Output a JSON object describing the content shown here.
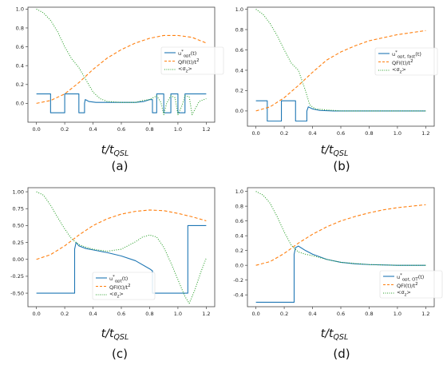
{
  "colors": {
    "u": "#1f77b4",
    "qfi": "#ff7f0e",
    "sigma": "#2ca02c",
    "axes": "#444444"
  },
  "xlabel": {
    "main": "t/t",
    "sub": "QSL"
  },
  "chart_data": [
    {
      "type": "line",
      "caption": "(a)",
      "xlim": [
        -0.06,
        1.26
      ],
      "ylim": [
        -0.2,
        1.02
      ],
      "xticks": [
        "0.0",
        "0.2",
        "0.4",
        "0.6",
        "0.8",
        "1.0",
        "1.2"
      ],
      "yticks": [
        "0.0",
        "0.2",
        "0.4",
        "0.6",
        "0.8",
        "1.0"
      ],
      "legend_loc": "center-right",
      "series": [
        {
          "name": "u*opt(t)",
          "label_html": "u<sup>*</sup><sub>opt</sub>(t)",
          "style": "solid",
          "x": [
            0,
            0.1,
            0.1,
            0.2,
            0.2,
            0.3,
            0.3,
            0.34,
            0.34,
            0.345,
            0.37,
            0.42,
            0.5,
            0.6,
            0.7,
            0.76,
            0.8,
            0.82,
            0.82,
            0.85,
            0.85,
            0.9,
            0.9,
            0.95,
            0.95,
            1.0,
            1.0,
            1.05,
            1.05,
            1.1,
            1.1,
            1.2
          ],
          "y": [
            0.1,
            0.1,
            -0.1,
            -0.1,
            0.1,
            0.1,
            -0.1,
            -0.1,
            0.0,
            0.04,
            0.02,
            0.01,
            0.01,
            0.01,
            0.01,
            0.02,
            0.04,
            0.04,
            -0.1,
            -0.1,
            0.1,
            0.1,
            -0.1,
            -0.1,
            0.1,
            0.1,
            -0.1,
            -0.1,
            0.1,
            0.1,
            0.1,
            0.1
          ]
        },
        {
          "name": "QFI(t)/t²",
          "label_html": "QFI(t)/t<sup>2</sup>",
          "style": "dashed",
          "x": [
            0,
            0.1,
            0.2,
            0.3,
            0.4,
            0.5,
            0.6,
            0.7,
            0.8,
            0.9,
            1.0,
            1.1,
            1.2
          ],
          "y": [
            0.0,
            0.03,
            0.1,
            0.22,
            0.36,
            0.48,
            0.57,
            0.64,
            0.69,
            0.72,
            0.72,
            0.7,
            0.64
          ]
        },
        {
          "name": "<σz>",
          "label_html": "&lt;σ<sub>z</sub>&gt;",
          "style": "dotted",
          "x": [
            0,
            0.05,
            0.1,
            0.15,
            0.2,
            0.25,
            0.3,
            0.35,
            0.4,
            0.45,
            0.5,
            0.6,
            0.7,
            0.75,
            0.8,
            0.85,
            0.88,
            0.9,
            0.92,
            0.95,
            0.98,
            1.0,
            1.03,
            1.05,
            1.08,
            1.1,
            1.15,
            1.2
          ],
          "y": [
            1.0,
            0.96,
            0.88,
            0.76,
            0.6,
            0.47,
            0.38,
            0.25,
            0.12,
            0.05,
            0.02,
            0.01,
            0.01,
            0.03,
            0.04,
            0.08,
            0.01,
            -0.12,
            0.0,
            0.08,
            0.06,
            -0.12,
            -0.02,
            0.08,
            0.07,
            -0.12,
            0.02,
            0.05
          ]
        }
      ]
    },
    {
      "type": "line",
      "caption": "(b)",
      "xlim": [
        -0.06,
        1.26
      ],
      "ylim": [
        -0.15,
        1.02
      ],
      "xticks": [
        "0.0",
        "0.2",
        "0.4",
        "0.6",
        "0.8",
        "1.0",
        "1.2"
      ],
      "yticks": [
        "0.0",
        "0.2",
        "0.4",
        "0.6",
        "0.8",
        "1.0"
      ],
      "legend_loc": "center-right",
      "series": [
        {
          "name": "u*opt,fast(t)",
          "label_html": "u<sup>*</sup><sub>opt, fast</sub>(t)",
          "style": "solid",
          "x": [
            0,
            0.08,
            0.08,
            0.18,
            0.18,
            0.28,
            0.28,
            0.36,
            0.36,
            0.37,
            0.4,
            0.45,
            0.55,
            0.7,
            0.9,
            1.2
          ],
          "y": [
            0.1,
            0.1,
            -0.1,
            -0.1,
            0.1,
            0.1,
            -0.1,
            -0.1,
            0.0,
            0.04,
            0.02,
            0.005,
            0.0,
            0.0,
            0.0,
            0.0
          ]
        },
        {
          "name": "QFI(t)/t²",
          "label_html": "QFI(t)/t<sup>2</sup>",
          "style": "dashed",
          "x": [
            0,
            0.1,
            0.2,
            0.3,
            0.4,
            0.5,
            0.6,
            0.7,
            0.8,
            0.9,
            1.0,
            1.1,
            1.2
          ],
          "y": [
            0.0,
            0.04,
            0.13,
            0.25,
            0.38,
            0.5,
            0.58,
            0.64,
            0.69,
            0.72,
            0.75,
            0.77,
            0.79
          ]
        },
        {
          "name": "<σz>",
          "label_html": "&lt;σ<sub>z</sub>&gt;",
          "style": "dotted",
          "x": [
            0,
            0.05,
            0.1,
            0.15,
            0.2,
            0.25,
            0.3,
            0.35,
            0.38,
            0.42,
            0.5,
            0.6,
            0.8,
            1.0,
            1.2
          ],
          "y": [
            1.0,
            0.95,
            0.86,
            0.74,
            0.6,
            0.47,
            0.4,
            0.2,
            0.06,
            0.02,
            0.01,
            0.0,
            0.0,
            0.0,
            0.0
          ]
        }
      ]
    },
    {
      "type": "line",
      "caption": "(c)",
      "xlim": [
        -0.06,
        1.26
      ],
      "ylim": [
        -0.7,
        1.06
      ],
      "xticks": [
        "0.0",
        "0.2",
        "0.4",
        "0.6",
        "0.8",
        "1.0",
        "1.2"
      ],
      "yticks": [
        "-0.50",
        "-0.25",
        "0.00",
        "0.25",
        "0.50",
        "0.75",
        "1.00"
      ],
      "legend_loc": "bottom-center",
      "series": [
        {
          "name": "u*opt(t)",
          "label_html": "u<sup>*</sup><sub>opt</sub>(t)",
          "style": "solid",
          "x": [
            0,
            0.27,
            0.27,
            0.28,
            0.3,
            0.35,
            0.4,
            0.5,
            0.6,
            0.7,
            0.8,
            0.82,
            0.82,
            1.07,
            1.07,
            1.2
          ],
          "y": [
            -0.5,
            -0.5,
            0.15,
            0.25,
            0.2,
            0.16,
            0.14,
            0.1,
            0.05,
            -0.02,
            -0.14,
            -0.17,
            -0.5,
            -0.5,
            0.5,
            0.5
          ]
        },
        {
          "name": "QFI(t)/t²",
          "label_html": "QFI(t)/t<sup>2</sup>",
          "style": "dashed",
          "x": [
            0,
            0.1,
            0.2,
            0.3,
            0.4,
            0.5,
            0.6,
            0.7,
            0.8,
            0.9,
            1.0,
            1.1,
            1.2
          ],
          "y": [
            0.0,
            0.07,
            0.2,
            0.36,
            0.5,
            0.6,
            0.67,
            0.71,
            0.73,
            0.72,
            0.68,
            0.63,
            0.57
          ]
        },
        {
          "name": "<σz>",
          "label_html": "&lt;σ<sub>z</sub>&gt;",
          "style": "dotted",
          "x": [
            0,
            0.05,
            0.1,
            0.15,
            0.2,
            0.25,
            0.3,
            0.35,
            0.4,
            0.5,
            0.6,
            0.7,
            0.75,
            0.8,
            0.85,
            0.9,
            0.95,
            1.0,
            1.05,
            1.08,
            1.12,
            1.16,
            1.2
          ],
          "y": [
            1.0,
            0.95,
            0.8,
            0.62,
            0.45,
            0.3,
            0.22,
            0.18,
            0.15,
            0.12,
            0.15,
            0.26,
            0.33,
            0.36,
            0.33,
            0.18,
            -0.05,
            -0.3,
            -0.55,
            -0.65,
            -0.45,
            -0.2,
            0.02
          ]
        }
      ]
    },
    {
      "type": "line",
      "caption": "(d)",
      "xlim": [
        -0.06,
        1.26
      ],
      "ylim": [
        -0.56,
        1.05
      ],
      "xticks": [
        "0.0",
        "0.2",
        "0.4",
        "0.6",
        "0.8",
        "1.0",
        "1.2"
      ],
      "yticks": [
        "-0.4",
        "-0.2",
        "0.0",
        "0.2",
        "0.4",
        "0.6",
        "0.8",
        "1.0"
      ],
      "legend_loc": "bottom-right",
      "series": [
        {
          "name": "u*opt,OT(t)",
          "label_html": "u<sup>*</sup><sub>opt, OT</sub>(t)",
          "style": "solid",
          "x": [
            0,
            0.27,
            0.27,
            0.28,
            0.3,
            0.35,
            0.4,
            0.5,
            0.6,
            0.7,
            0.8,
            1.0,
            1.2
          ],
          "y": [
            -0.5,
            -0.5,
            0.15,
            0.24,
            0.26,
            0.2,
            0.15,
            0.08,
            0.04,
            0.02,
            0.01,
            0.0,
            0.0
          ]
        },
        {
          "name": "QFI(t)/t²",
          "label_html": "QFI(t)/t<sup>2</sup>",
          "style": "dashed",
          "x": [
            0,
            0.1,
            0.2,
            0.3,
            0.4,
            0.5,
            0.6,
            0.7,
            0.8,
            0.9,
            1.0,
            1.1,
            1.2
          ],
          "y": [
            0.0,
            0.05,
            0.16,
            0.3,
            0.42,
            0.52,
            0.6,
            0.66,
            0.71,
            0.75,
            0.78,
            0.8,
            0.82
          ]
        },
        {
          "name": "<σz>",
          "label_html": "&lt;σ<sub>z</sub>&gt;",
          "style": "dotted",
          "x": [
            0,
            0.05,
            0.1,
            0.15,
            0.2,
            0.25,
            0.3,
            0.35,
            0.4,
            0.5,
            0.6,
            0.8,
            1.0,
            1.2
          ],
          "y": [
            1.0,
            0.95,
            0.84,
            0.66,
            0.45,
            0.27,
            0.18,
            0.15,
            0.13,
            0.08,
            0.04,
            0.01,
            0.0,
            0.0
          ]
        }
      ]
    }
  ]
}
